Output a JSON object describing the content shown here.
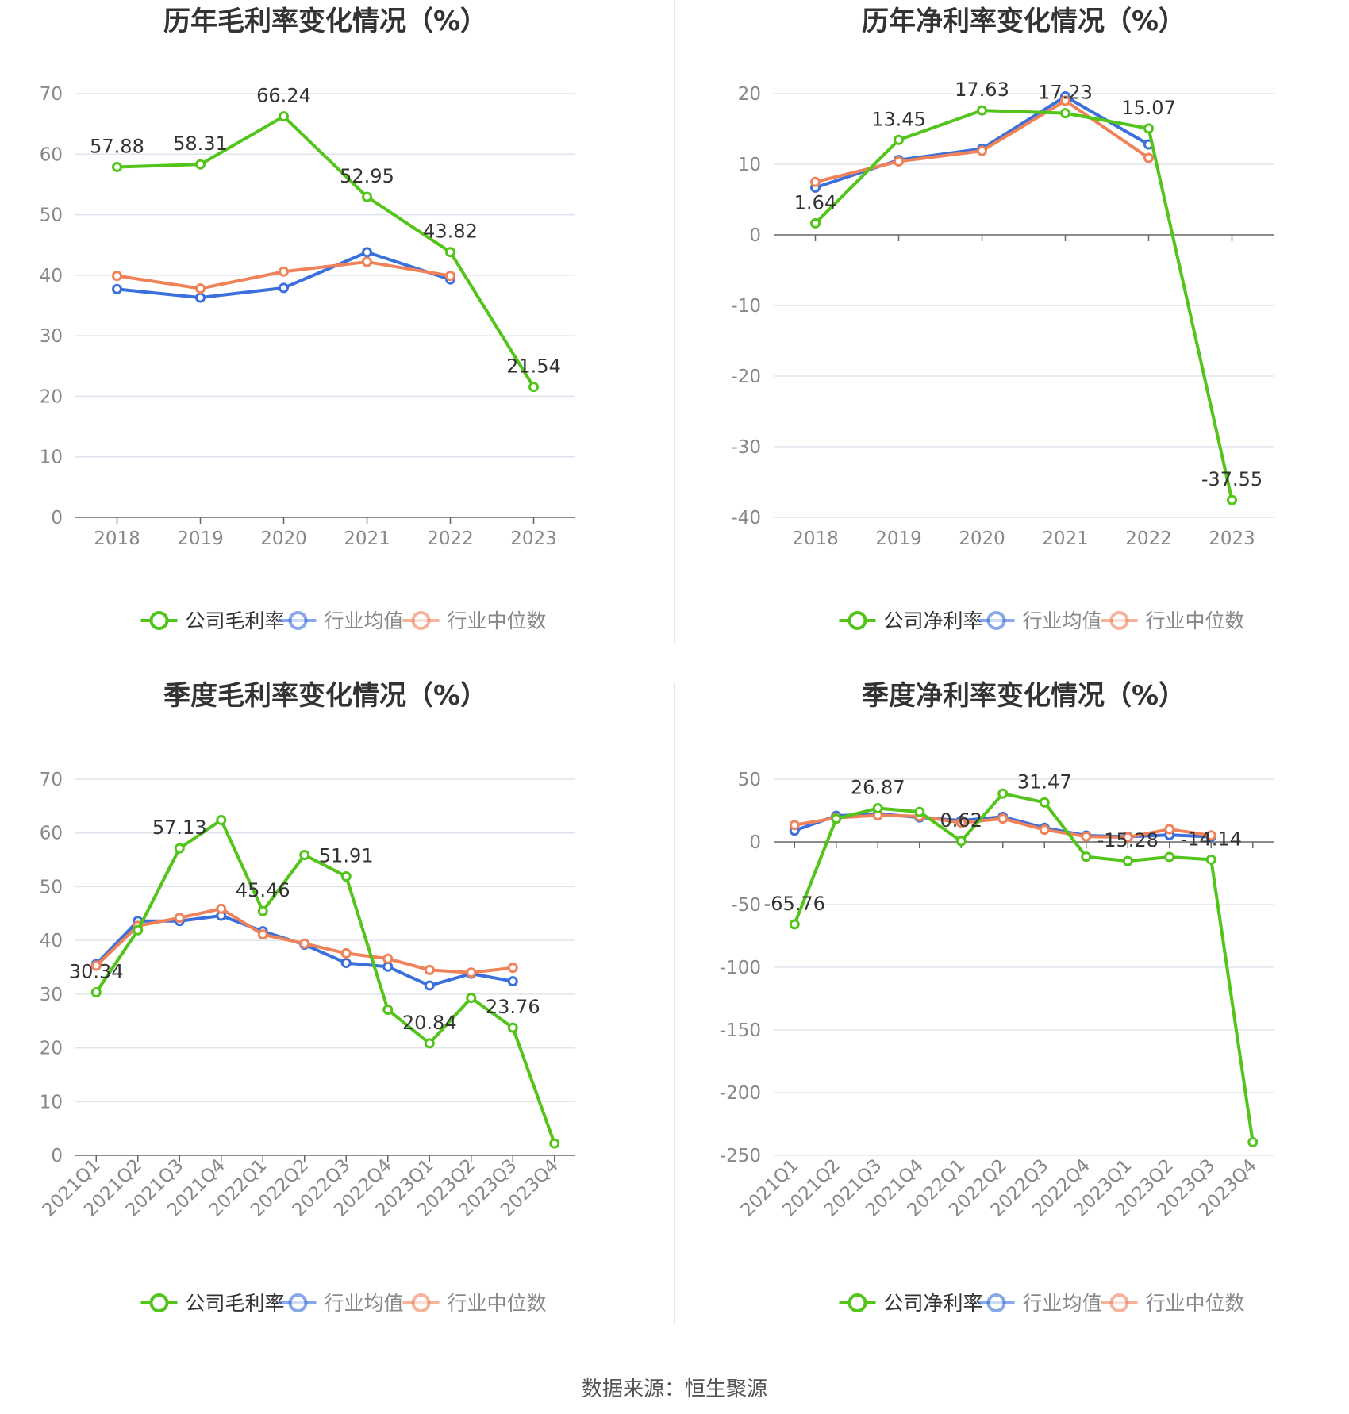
{
  "colors": {
    "company": "#52c41a",
    "avg": "#3b6fdc",
    "median": "#f0825a",
    "grid": "#e0e3ee",
    "axis": "#666666",
    "text": "#333333",
    "tick": "#888888"
  },
  "footer": {
    "source": "数据来源：恒生聚源"
  },
  "chart_data": [
    {
      "type": "line",
      "title": "历年毛利率变化情况（%）",
      "categories": [
        "2018",
        "2019",
        "2020",
        "2021",
        "2022",
        "2023"
      ],
      "ylim": [
        0,
        70
      ],
      "yticks": [
        0,
        10,
        20,
        30,
        40,
        50,
        60,
        70
      ],
      "series": [
        {
          "name": "公司毛利率",
          "role": "company",
          "values": [
            57.88,
            58.31,
            66.24,
            52.95,
            43.82,
            21.54
          ],
          "labels": [
            "57.88",
            "58.31",
            "66.24",
            "52.95",
            "43.82",
            "21.54"
          ]
        },
        {
          "name": "行业均值",
          "role": "avg",
          "values": [
            37.7,
            36.3,
            37.9,
            43.8,
            39.3,
            null
          ]
        },
        {
          "name": "行业中位数",
          "role": "median",
          "values": [
            39.9,
            37.8,
            40.6,
            42.2,
            39.9,
            null
          ]
        }
      ]
    },
    {
      "type": "line",
      "title": "历年净利率变化情况（%）",
      "categories": [
        "2018",
        "2019",
        "2020",
        "2021",
        "2022",
        "2023"
      ],
      "ylim": [
        -40,
        20
      ],
      "yticks": [
        -40,
        -30,
        -20,
        -10,
        0,
        10,
        20
      ],
      "series": [
        {
          "name": "公司净利率",
          "role": "company",
          "values": [
            1.64,
            13.45,
            17.63,
            17.23,
            15.07,
            -37.55
          ],
          "labels": [
            "1.64",
            "13.45",
            "17.63",
            "17.23",
            "15.07",
            "-37.55"
          ]
        },
        {
          "name": "行业均值",
          "role": "avg",
          "values": [
            6.7,
            10.6,
            12.2,
            19.6,
            12.8,
            null
          ]
        },
        {
          "name": "行业中位数",
          "role": "median",
          "values": [
            7.5,
            10.4,
            11.9,
            19.0,
            10.9,
            null
          ]
        }
      ]
    },
    {
      "type": "line",
      "title": "季度毛利率变化情况（%）",
      "categories": [
        "2021Q1",
        "2021Q2",
        "2021Q3",
        "2021Q4",
        "2022Q1",
        "2022Q2",
        "2022Q3",
        "2022Q4",
        "2023Q1",
        "2023Q2",
        "2023Q3",
        "2023Q4"
      ],
      "ylim": [
        0,
        70
      ],
      "yticks": [
        0,
        10,
        20,
        30,
        40,
        50,
        60,
        70
      ],
      "series": [
        {
          "name": "公司毛利率",
          "role": "company",
          "values": [
            30.34,
            41.9,
            57.13,
            62.4,
            45.46,
            55.9,
            51.91,
            27.1,
            20.84,
            29.3,
            23.76,
            2.2
          ],
          "labels": [
            "30.34",
            "",
            "57.13",
            "",
            "45.46",
            "",
            "51.91",
            "",
            "20.84",
            "",
            "23.76",
            ""
          ]
        },
        {
          "name": "行业均值",
          "role": "avg",
          "values": [
            35.6,
            43.6,
            43.6,
            44.6,
            41.7,
            39.2,
            35.8,
            35.1,
            31.6,
            33.8,
            32.4,
            null
          ]
        },
        {
          "name": "行业中位数",
          "role": "median",
          "values": [
            35.3,
            42.7,
            44.2,
            45.9,
            41.1,
            39.4,
            37.6,
            36.6,
            34.5,
            34.0,
            34.9,
            null
          ]
        }
      ]
    },
    {
      "type": "line",
      "title": "季度净利率变化情况（%）",
      "categories": [
        "2021Q1",
        "2021Q2",
        "2021Q3",
        "2021Q4",
        "2022Q1",
        "2022Q2",
        "2022Q3",
        "2022Q4",
        "2023Q1",
        "2023Q2",
        "2023Q3",
        "2023Q4"
      ],
      "ylim": [
        -250,
        50
      ],
      "yticks": [
        -250,
        -200,
        -150,
        -100,
        -50,
        0,
        50
      ],
      "series": [
        {
          "name": "公司净利率",
          "role": "company",
          "values": [
            -65.76,
            18.5,
            26.87,
            24.0,
            0.62,
            38.5,
            31.47,
            -11.8,
            -15.28,
            -12.0,
            -14.14,
            -239.5
          ],
          "labels": [
            "-65.76",
            "",
            "26.87",
            "",
            "0.62",
            "",
            "31.47",
            "",
            "-15.28",
            "",
            "-14.14",
            ""
          ]
        },
        {
          "name": "行业均值",
          "role": "avg",
          "values": [
            9.0,
            20.8,
            22.4,
            19.5,
            17.0,
            20.0,
            11.2,
            5.1,
            4.2,
            5.5,
            4.1,
            null
          ]
        },
        {
          "name": "行业中位数",
          "role": "median",
          "values": [
            13.4,
            19.2,
            21.2,
            20.4,
            15.3,
            18.6,
            9.7,
            4.3,
            3.8,
            10.1,
            5.2,
            null
          ]
        }
      ]
    }
  ]
}
